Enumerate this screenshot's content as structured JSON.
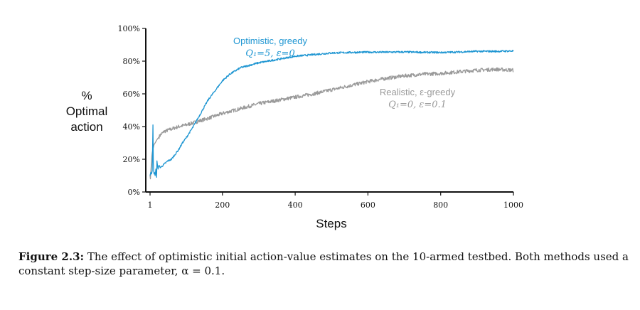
{
  "chart_data": {
    "type": "line",
    "ylabel_lines": [
      "%",
      "Optimal",
      "action"
    ],
    "xlabel": "Steps",
    "xlim": [
      1,
      1000
    ],
    "ylim": [
      0,
      100
    ],
    "x_ticks": [
      1,
      200,
      400,
      600,
      800,
      1000
    ],
    "y_ticks": [
      0,
      20,
      40,
      60,
      80,
      100
    ],
    "y_tick_labels": [
      "0%",
      "20%",
      "40%",
      "60%",
      "80%",
      "100%"
    ],
    "series": [
      {
        "name": "Optimistic, greedy",
        "params": "Q₁=5,  ε=0",
        "color": "#1f96d2",
        "x": [
          1,
          3,
          5,
          7,
          9,
          10,
          11,
          12,
          13,
          15,
          17,
          19,
          20,
          21,
          23,
          25,
          30,
          40,
          50,
          60,
          70,
          80,
          90,
          100,
          120,
          140,
          160,
          180,
          200,
          220,
          250,
          300,
          350,
          400,
          450,
          500,
          550,
          600,
          650,
          700,
          750,
          800,
          850,
          900,
          950,
          1000
        ],
        "y": [
          10,
          12,
          11,
          13,
          41,
          18,
          13,
          11,
          12,
          10,
          14,
          9,
          19,
          17,
          14,
          16,
          15,
          17,
          19,
          20,
          23,
          26,
          30,
          33,
          40,
          48,
          56,
          62,
          68,
          72,
          76,
          79,
          81,
          83,
          84,
          85,
          85.3,
          85.5,
          85.5,
          85.6,
          85.4,
          85.3,
          85.6,
          86,
          86,
          86.2
        ]
      },
      {
        "name": "Realistic, ε-greedy",
        "params": "Q₁=0,  ε=0.1",
        "color": "#9a9a9a",
        "x": [
          1,
          2,
          3,
          4,
          5,
          6,
          7,
          8,
          9,
          10,
          12,
          15,
          20,
          30,
          40,
          60,
          80,
          100,
          130,
          160,
          200,
          250,
          300,
          350,
          400,
          450,
          500,
          550,
          600,
          650,
          700,
          750,
          800,
          850,
          900,
          950,
          1000
        ],
        "y": [
          10,
          8,
          12,
          15,
          18,
          22,
          24,
          25,
          26,
          27,
          29,
          30,
          32,
          35,
          37,
          38.5,
          40,
          41,
          43,
          45,
          48,
          51,
          54,
          56,
          58,
          60,
          62.5,
          65,
          67.5,
          69.5,
          71,
          72,
          72.5,
          73.5,
          74.5,
          75,
          74.5
        ]
      }
    ]
  },
  "caption": {
    "label": "Figure 2.3:",
    "text": "The effect of optimistic initial action-value estimates on the 10-armed testbed. Both methods used a constant step-size parameter, α = 0.1."
  }
}
